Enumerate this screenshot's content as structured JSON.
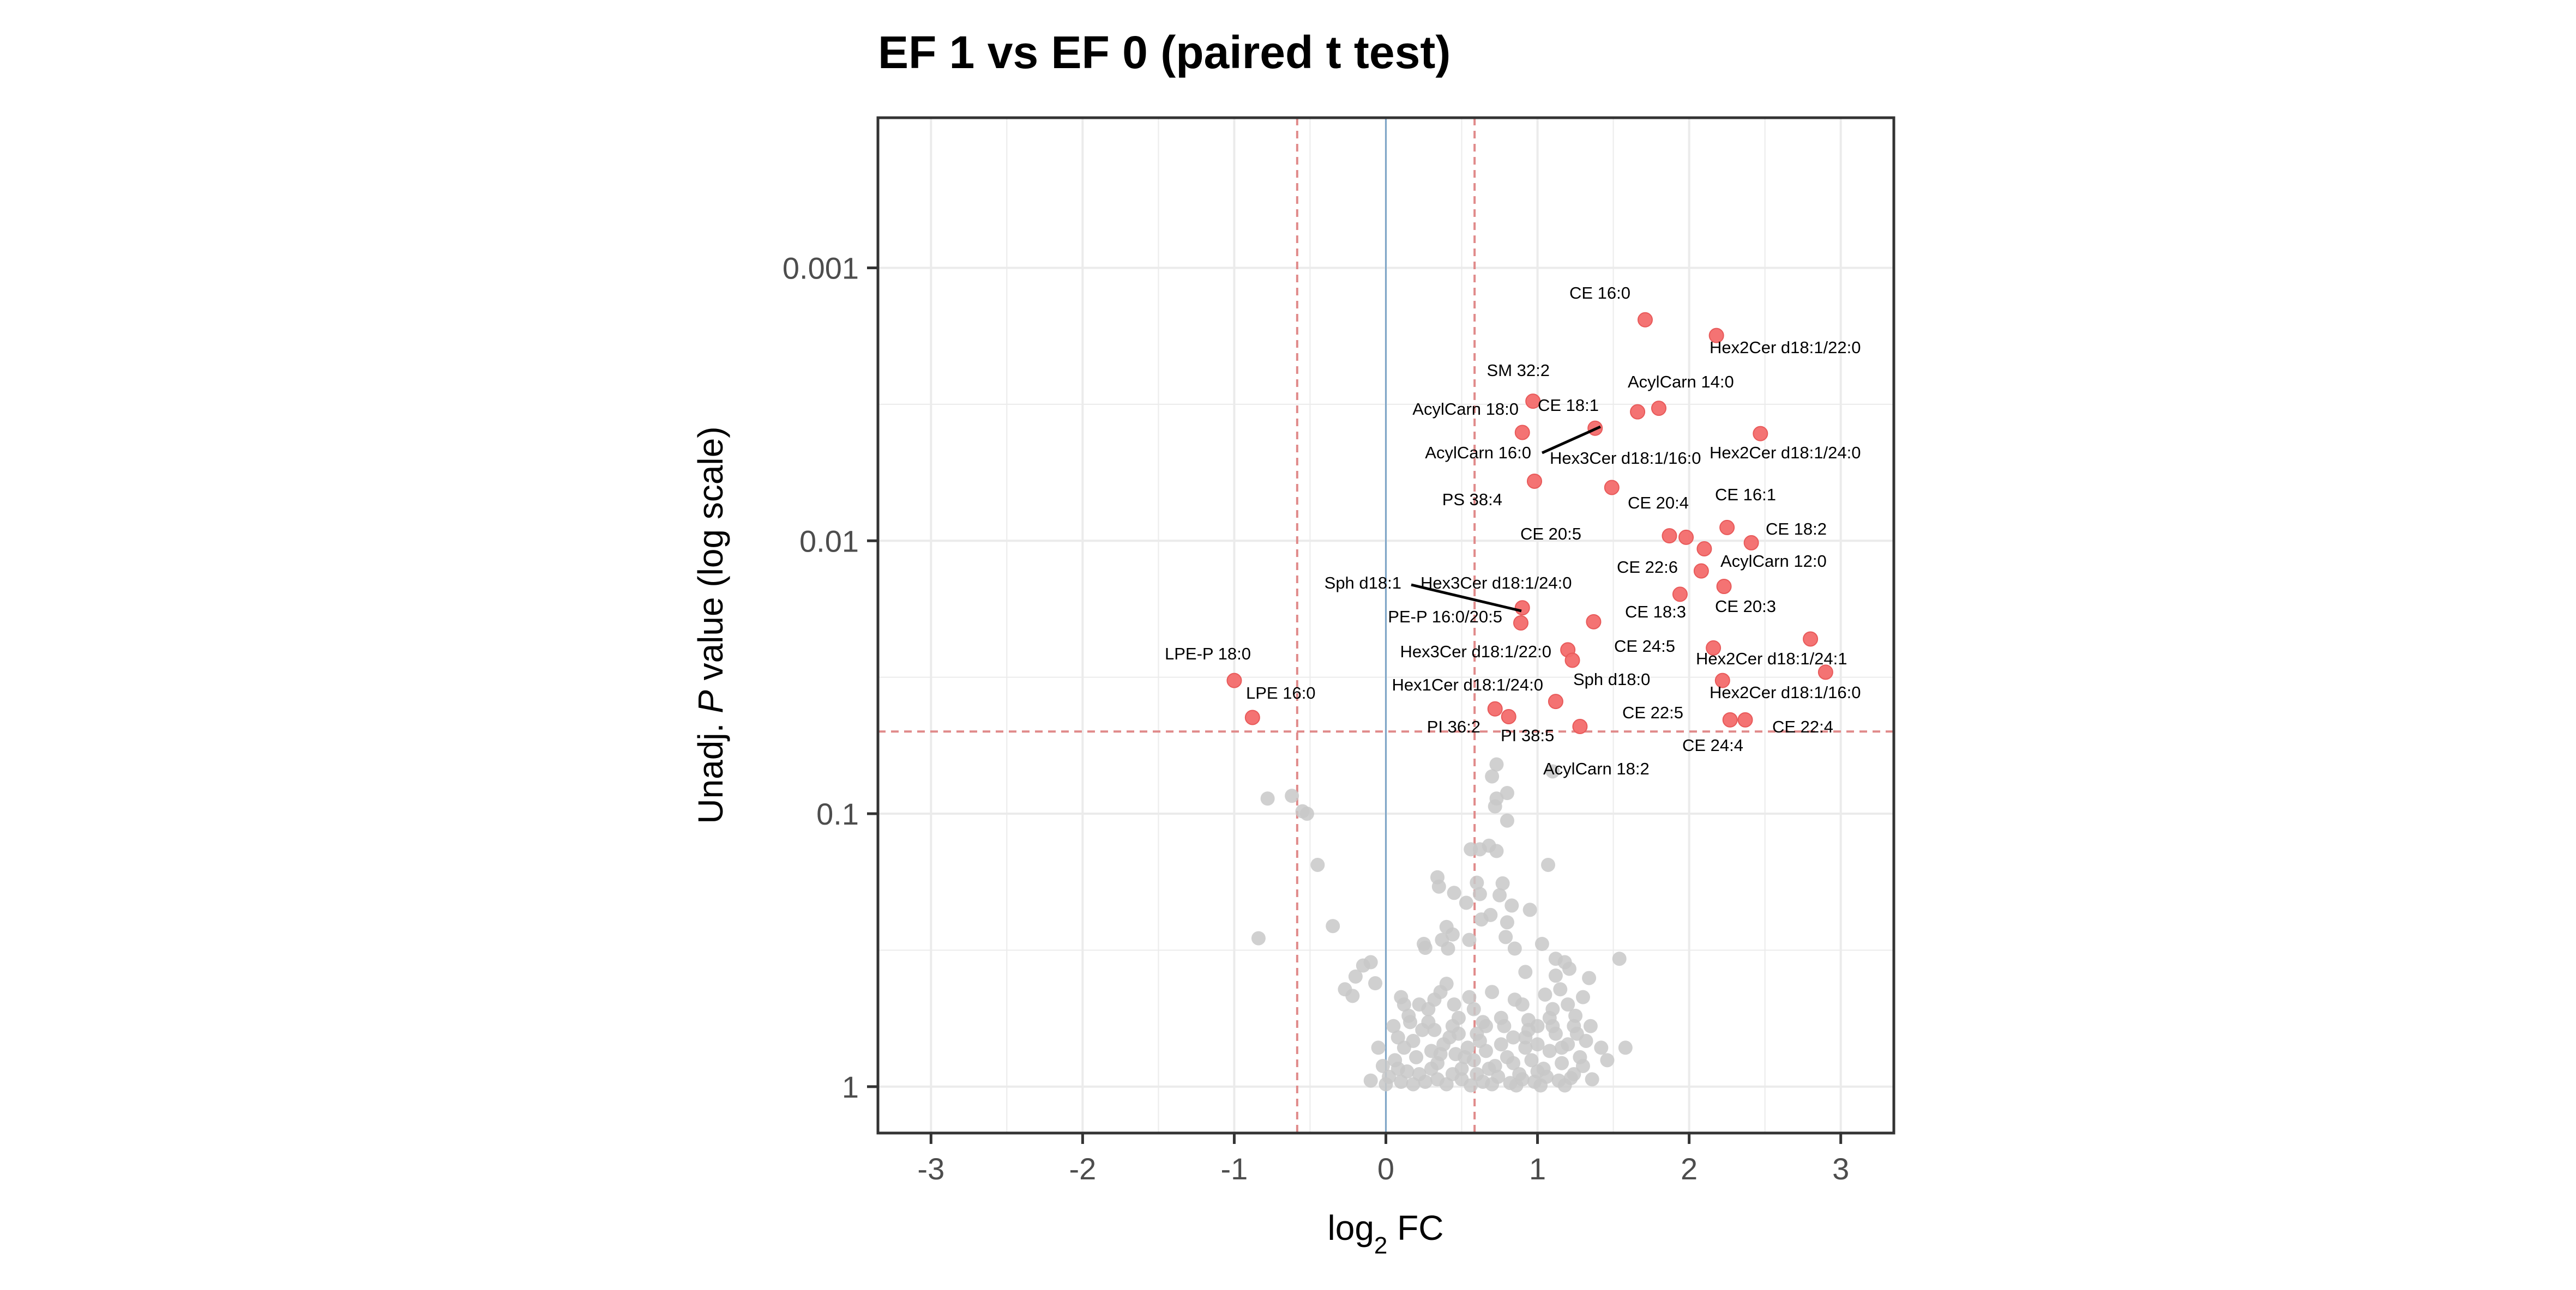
{
  "chart_data": {
    "type": "scatter",
    "title": "EF 1 vs EF 0 (paired t test)",
    "xlabel": "log",
    "xlabel_sub": "2",
    "xlabel_suffix": " FC",
    "ylabel_prefix": "Unadj. ",
    "ylabel_italic": "P",
    "ylabel_suffix": " value (log scale)",
    "xlim": [
      -3.35,
      3.35
    ],
    "ylim_log10": [
      -3.55,
      0.17
    ],
    "y_log_scale": true,
    "y_reversed": true,
    "grid": true,
    "x_ticks": [
      -3,
      -2,
      -1,
      0,
      1,
      2,
      3
    ],
    "x_tick_labels": [
      "-3",
      "-2",
      "-1",
      "0",
      "1",
      "2",
      "3"
    ],
    "y_ticks": [
      0.001,
      0.01,
      0.1,
      1
    ],
    "y_tick_labels": [
      "0.001",
      "0.01",
      "0.1",
      "1"
    ],
    "thresholds": {
      "fc": 0.585,
      "p": 0.05
    },
    "colors": {
      "significant": "#f36b6b",
      "nonsignificant": "#c8c8c8",
      "threshold_line": "#e08a8a",
      "zero_line": "#7fa6c8",
      "panel_border": "#333333",
      "grid": "#ebebeb"
    },
    "labeled_points": [
      {
        "label": "CE 16:0",
        "x": 1.71,
        "p": 0.00155
      },
      {
        "label": "Hex2Cer d18:1/22:0",
        "x": 2.18,
        "p": 0.00177
      },
      {
        "label": "SM 32:2",
        "x": 0.97,
        "p": 0.00308
      },
      {
        "label": "AcylCarn 14:0",
        "x": 1.8,
        "p": 0.00327
      },
      {
        "label": "AcylCarn 18:0",
        "x": 0.9,
        "p": 0.00401
      },
      {
        "label": "CE 18:1",
        "x": 1.38,
        "p": 0.00387
      },
      {
        "label": "AcylCarn 16:0",
        "x": 1.66,
        "p": 0.00337
      },
      {
        "label": "Hex2Cer d18:1/24:0",
        "x": 2.47,
        "p": 0.00405
      },
      {
        "label": "Hex3Cer d18:1/16:0",
        "x": 1.49,
        "p": 0.00638
      },
      {
        "label": "PS 38:4",
        "x": 0.98,
        "p": 0.00605
      },
      {
        "label": "CE 20:4",
        "x": 1.98,
        "p": 0.00971
      },
      {
        "label": "CE 16:1",
        "x": 2.25,
        "p": 0.00894
      },
      {
        "label": "CE 20:5",
        "x": 1.87,
        "p": 0.00959
      },
      {
        "label": "CE 18:2",
        "x": 2.41,
        "p": 0.01017
      },
      {
        "label": "CE 22:6",
        "x": 2.1,
        "p": 0.0107
      },
      {
        "label": "AcylCarn 12:0",
        "x": 2.08,
        "p": 0.0129
      },
      {
        "label": "Sph d18:1",
        "x": 0.9,
        "p": 0.0176
      },
      {
        "label": "Hex3Cer d18:1/24:0",
        "x": 0.89,
        "p": 0.02
      },
      {
        "label": "PE-P 16:0/20:5",
        "x": 1.94,
        "p": 0.0157
      },
      {
        "label": "CE 20:3",
        "x": 2.23,
        "p": 0.0147
      },
      {
        "label": "CE 18:3",
        "x": 1.37,
        "p": 0.0198
      },
      {
        "label": "CE 24:5",
        "x": 2.16,
        "p": 0.0247
      },
      {
        "label": "Hex3Cer d18:1/22:0",
        "x": 1.2,
        "p": 0.0251
      },
      {
        "label": "Hex2Cer d18:1/24:1",
        "x": 2.8,
        "p": 0.0229
      },
      {
        "label": "LPE-P 18:0",
        "x": -1.0,
        "p": 0.0325
      },
      {
        "label": "Hex1Cer d18:1/24:0",
        "x": 1.23,
        "p": 0.0274
      },
      {
        "label": "Sph d18:0",
        "x": 1.12,
        "p": 0.0388
      },
      {
        "label": "Hex2Cer d18:1/16:0",
        "x": 2.9,
        "p": 0.0303
      },
      {
        "label": "LPE 16:0",
        "x": -0.88,
        "p": 0.0444
      },
      {
        "label": "CE 22:5",
        "x": 2.22,
        "p": 0.0325
      },
      {
        "label": "PI 36:2",
        "x": 0.72,
        "p": 0.0413
      },
      {
        "label": "PI 38:5",
        "x": 0.81,
        "p": 0.0441
      },
      {
        "label": "CE 24:4",
        "x": 2.27,
        "p": 0.0453
      },
      {
        "label": "CE 22:4",
        "x": 2.37,
        "p": 0.0453
      },
      {
        "label": "AcylCarn 18:2",
        "x": 1.28,
        "p": 0.0479
      }
    ],
    "background_points": [
      {
        "x": -0.62,
        "p": 0.086
      },
      {
        "x": -0.55,
        "p": 0.098
      },
      {
        "x": -0.52,
        "p": 0.1
      },
      {
        "x": -0.78,
        "p": 0.088
      },
      {
        "x": -0.84,
        "p": 0.286
      },
      {
        "x": -0.45,
        "p": 0.154
      },
      {
        "x": -0.35,
        "p": 0.258
      },
      {
        "x": 0.73,
        "p": 0.066
      },
      {
        "x": 0.7,
        "p": 0.073
      },
      {
        "x": 0.8,
        "p": 0.084
      },
      {
        "x": 0.73,
        "p": 0.088
      },
      {
        "x": 0.72,
        "p": 0.094
      },
      {
        "x": 0.8,
        "p": 0.106
      },
      {
        "x": 1.1,
        "p": 0.07
      },
      {
        "x": 0.68,
        "p": 0.131
      },
      {
        "x": 0.73,
        "p": 0.137
      },
      {
        "x": 0.62,
        "p": 0.135
      },
      {
        "x": 0.56,
        "p": 0.135
      },
      {
        "x": 1.07,
        "p": 0.154
      },
      {
        "x": 0.77,
        "p": 0.18
      },
      {
        "x": 0.6,
        "p": 0.179
      },
      {
        "x": 0.62,
        "p": 0.197
      },
      {
        "x": 0.75,
        "p": 0.199
      },
      {
        "x": 0.83,
        "p": 0.217
      },
      {
        "x": 0.95,
        "p": 0.225
      },
      {
        "x": 0.69,
        "p": 0.235
      },
      {
        "x": 0.8,
        "p": 0.25
      },
      {
        "x": 0.34,
        "p": 0.171
      },
      {
        "x": 0.35,
        "p": 0.185
      },
      {
        "x": 0.45,
        "p": 0.195
      },
      {
        "x": 0.53,
        "p": 0.212
      },
      {
        "x": 0.63,
        "p": 0.244
      },
      {
        "x": 0.4,
        "p": 0.26
      },
      {
        "x": 0.25,
        "p": 0.3
      },
      {
        "x": 0.26,
        "p": 0.31
      },
      {
        "x": 0.37,
        "p": 0.29
      },
      {
        "x": 0.55,
        "p": 0.29
      },
      {
        "x": 0.44,
        "p": 0.277
      },
      {
        "x": 0.41,
        "p": 0.312
      },
      {
        "x": 0.79,
        "p": 0.283
      },
      {
        "x": 0.85,
        "p": 0.312
      },
      {
        "x": 0.92,
        "p": 0.38
      },
      {
        "x": 1.03,
        "p": 0.3
      },
      {
        "x": 1.12,
        "p": 0.34
      },
      {
        "x": 1.21,
        "p": 0.37
      },
      {
        "x": 1.18,
        "p": 0.35
      },
      {
        "x": 1.12,
        "p": 0.392
      },
      {
        "x": 1.34,
        "p": 0.4
      },
      {
        "x": 1.54,
        "p": 0.34
      },
      {
        "x": -0.15,
        "p": 0.36
      },
      {
        "x": -0.2,
        "p": 0.395
      },
      {
        "x": -0.07,
        "p": 0.418
      },
      {
        "x": -0.22,
        "p": 0.465
      },
      {
        "x": -0.27,
        "p": 0.44
      },
      {
        "x": -0.1,
        "p": 0.35
      },
      {
        "x": 0.1,
        "p": 0.47
      },
      {
        "x": 0.15,
        "p": 0.55
      },
      {
        "x": 0.22,
        "p": 0.5
      },
      {
        "x": 0.28,
        "p": 0.52
      },
      {
        "x": 0.32,
        "p": 0.48
      },
      {
        "x": 0.36,
        "p": 0.45
      },
      {
        "x": 0.4,
        "p": 0.42
      },
      {
        "x": 0.45,
        "p": 0.5
      },
      {
        "x": 0.48,
        "p": 0.56
      },
      {
        "x": 0.55,
        "p": 0.47
      },
      {
        "x": 0.58,
        "p": 0.52
      },
      {
        "x": 0.66,
        "p": 0.6
      },
      {
        "x": 0.7,
        "p": 0.45
      },
      {
        "x": 0.85,
        "p": 0.48
      },
      {
        "x": 0.9,
        "p": 0.5
      },
      {
        "x": 0.94,
        "p": 0.57
      },
      {
        "x": 1.0,
        "p": 0.6
      },
      {
        "x": 1.05,
        "p": 0.46
      },
      {
        "x": 1.1,
        "p": 0.52
      },
      {
        "x": 1.15,
        "p": 0.44
      },
      {
        "x": 1.2,
        "p": 0.5
      },
      {
        "x": 1.25,
        "p": 0.55
      },
      {
        "x": 1.3,
        "p": 0.47
      },
      {
        "x": 1.35,
        "p": 0.6
      },
      {
        "x": 1.42,
        "p": 0.72
      },
      {
        "x": 1.58,
        "p": 0.72
      },
      {
        "x": 0.05,
        "p": 0.6
      },
      {
        "x": 0.08,
        "p": 0.66
      },
      {
        "x": 0.12,
        "p": 0.72
      },
      {
        "x": 0.18,
        "p": 0.68
      },
      {
        "x": 0.2,
        "p": 0.78
      },
      {
        "x": 0.24,
        "p": 0.62
      },
      {
        "x": 0.3,
        "p": 0.74
      },
      {
        "x": 0.34,
        "p": 0.82
      },
      {
        "x": 0.38,
        "p": 0.7
      },
      {
        "x": 0.42,
        "p": 0.66
      },
      {
        "x": 0.46,
        "p": 0.76
      },
      {
        "x": 0.5,
        "p": 0.86
      },
      {
        "x": 0.54,
        "p": 0.72
      },
      {
        "x": 0.58,
        "p": 0.8
      },
      {
        "x": 0.62,
        "p": 0.68
      },
      {
        "x": 0.66,
        "p": 0.74
      },
      {
        "x": 0.72,
        "p": 0.84
      },
      {
        "x": 0.76,
        "p": 0.7
      },
      {
        "x": 0.8,
        "p": 0.78
      },
      {
        "x": 0.84,
        "p": 0.66
      },
      {
        "x": 0.88,
        "p": 0.9
      },
      {
        "x": 0.92,
        "p": 0.72
      },
      {
        "x": 0.96,
        "p": 0.8
      },
      {
        "x": 1.0,
        "p": 0.7
      },
      {
        "x": 1.04,
        "p": 0.86
      },
      {
        "x": 1.08,
        "p": 0.74
      },
      {
        "x": 1.12,
        "p": 0.64
      },
      {
        "x": 1.16,
        "p": 0.82
      },
      {
        "x": 1.2,
        "p": 0.7
      },
      {
        "x": 1.24,
        "p": 0.9
      },
      {
        "x": 1.28,
        "p": 0.78
      },
      {
        "x": 1.32,
        "p": 0.68
      },
      {
        "x": -0.05,
        "p": 0.72
      },
      {
        "x": -0.02,
        "p": 0.84
      },
      {
        "x": 0.02,
        "p": 0.92
      },
      {
        "x": 0.06,
        "p": 0.8
      },
      {
        "x": 0.1,
        "p": 0.96
      },
      {
        "x": 0.14,
        "p": 0.88
      },
      {
        "x": 0.18,
        "p": 0.98
      },
      {
        "x": 0.22,
        "p": 0.9
      },
      {
        "x": 0.26,
        "p": 0.96
      },
      {
        "x": 0.3,
        "p": 0.86
      },
      {
        "x": 0.34,
        "p": 0.94
      },
      {
        "x": 0.4,
        "p": 0.98
      },
      {
        "x": 0.44,
        "p": 0.9
      },
      {
        "x": 0.5,
        "p": 0.94
      },
      {
        "x": 0.56,
        "p": 0.99
      },
      {
        "x": 0.6,
        "p": 0.9
      },
      {
        "x": 0.64,
        "p": 0.96
      },
      {
        "x": 0.7,
        "p": 0.98
      },
      {
        "x": 0.74,
        "p": 0.92
      },
      {
        "x": 0.82,
        "p": 0.97
      },
      {
        "x": 0.86,
        "p": 0.99
      },
      {
        "x": 0.9,
        "p": 0.94
      },
      {
        "x": 0.98,
        "p": 0.96
      },
      {
        "x": 1.02,
        "p": 0.99
      },
      {
        "x": 1.06,
        "p": 0.92
      },
      {
        "x": 1.14,
        "p": 0.95
      },
      {
        "x": 1.18,
        "p": 0.99
      },
      {
        "x": 1.22,
        "p": 0.93
      },
      {
        "x": 1.36,
        "p": 0.94
      },
      {
        "x": 1.46,
        "p": 0.8
      },
      {
        "x": 0.16,
        "p": 0.58
      },
      {
        "x": 0.32,
        "p": 0.62
      },
      {
        "x": 0.48,
        "p": 0.64
      },
      {
        "x": 0.64,
        "p": 0.58
      },
      {
        "x": 0.78,
        "p": 0.6
      },
      {
        "x": 0.94,
        "p": 0.62
      },
      {
        "x": 1.1,
        "p": 0.6
      },
      {
        "x": 1.26,
        "p": 0.64
      },
      {
        "x": -0.1,
        "p": 0.95
      },
      {
        "x": 0.0,
        "p": 0.98
      },
      {
        "x": 0.08,
        "p": 0.86
      },
      {
        "x": 0.36,
        "p": 0.76
      },
      {
        "x": 0.52,
        "p": 0.78
      },
      {
        "x": 0.68,
        "p": 0.86
      },
      {
        "x": 0.84,
        "p": 0.82
      },
      {
        "x": 1.0,
        "p": 0.88
      },
      {
        "x": 1.16,
        "p": 0.72
      },
      {
        "x": 1.3,
        "p": 0.84
      },
      {
        "x": 0.12,
        "p": 0.5
      },
      {
        "x": 0.28,
        "p": 0.58
      },
      {
        "x": 0.44,
        "p": 0.6
      },
      {
        "x": 0.6,
        "p": 0.64
      },
      {
        "x": 0.76,
        "p": 0.56
      },
      {
        "x": 0.92,
        "p": 0.66
      },
      {
        "x": 1.08,
        "p": 0.56
      },
      {
        "x": 1.24,
        "p": 0.6
      }
    ]
  }
}
